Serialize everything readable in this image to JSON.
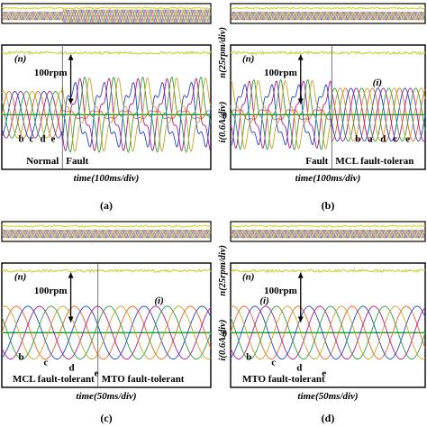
{
  "colors": {
    "phase_a": "#e8641e",
    "phase_b": "#2244cc",
    "phase_c": "#b0188e",
    "phase_d": "#2e9d3a",
    "phase_e": "#c9a227",
    "speed": "#c8d23c",
    "zero_line": "#10a020",
    "screen_bg": "#ffffff",
    "frame": "#000000"
  },
  "chart_data": [
    {
      "id": "a",
      "type": "line",
      "panel_label": "(a)",
      "xlabel": "time(100ms/div)",
      "ylabel_left": "",
      "ylabel_right": "",
      "scale_label": "100rpm",
      "speed_label": "(n)",
      "current_label": "",
      "region_labels": [
        "Normal",
        "Fault"
      ],
      "phase_labels": [
        "b",
        "c",
        "d",
        "e"
      ],
      "x_divisions": 10,
      "y_divisions": 8,
      "current_amplitude_div": [
        1.5,
        2.3
      ],
      "current_frequency_cycles_per_div": 0.72,
      "transition_div": [
        2.9
      ],
      "phases": [
        "a",
        "b",
        "c",
        "d",
        "e"
      ]
    },
    {
      "id": "b",
      "type": "line",
      "panel_label": "(b)",
      "xlabel": "time(100ms/div)",
      "ylabel_left": "i(0.6A/div)",
      "ylabel_right": "n(25rpm/div)",
      "scale_label": "100rpm",
      "speed_label": "(n)",
      "current_label": "(i)",
      "region_labels": [
        "Fault",
        "MCL fault-toleran"
      ],
      "phase_labels": [
        "b",
        "a",
        "d",
        "c",
        "e"
      ],
      "x_divisions": 10,
      "y_divisions": 8,
      "current_amplitude_div": [
        2.2,
        1.7
      ],
      "current_frequency_cycles_per_div": 0.72,
      "transition_div": [
        5.2
      ],
      "phases": [
        "a",
        "b",
        "c",
        "d",
        "e"
      ]
    },
    {
      "id": "c",
      "type": "line",
      "panel_label": "(c)",
      "xlabel": "time(50ms/div)",
      "ylabel_left": "",
      "ylabel_right": "",
      "scale_label": "100rpm",
      "speed_label": "(n)",
      "current_label": "(i)",
      "region_labels": [
        "MCL fault-tolerant",
        "MTO fault-tolerant"
      ],
      "phase_labels": [
        "b",
        "c",
        "d",
        "e"
      ],
      "x_divisions": 10,
      "y_divisions": 8,
      "current_amplitude_div": [
        1.7,
        1.7
      ],
      "current_frequency_cycles_per_div": 0.36,
      "transition_div": [
        4.6
      ],
      "phases": [
        "a",
        "b",
        "c",
        "d",
        "e"
      ]
    },
    {
      "id": "d",
      "type": "line",
      "panel_label": "(d)",
      "xlabel": "time(50ms/div)",
      "ylabel_left": "i(0.6A/div)",
      "ylabel_right": "n(25rpm/div)",
      "scale_label": "100rpm",
      "speed_label": "(n)",
      "current_label": "(i)",
      "region_labels": [
        "MTO fault-tolerant"
      ],
      "phase_labels": [
        "b",
        "c",
        "d",
        "e"
      ],
      "x_divisions": 10,
      "y_divisions": 8,
      "current_amplitude_div": [
        1.7
      ],
      "current_frequency_cycles_per_div": 0.36,
      "transition_div": [],
      "phases": [
        "a",
        "b",
        "c",
        "d",
        "e"
      ]
    }
  ]
}
